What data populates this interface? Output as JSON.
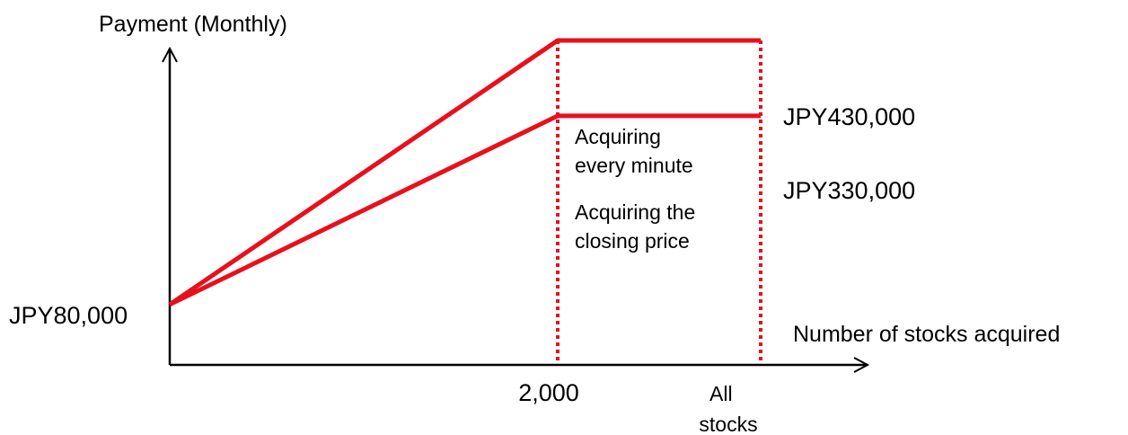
{
  "colors": {
    "axis": "#000000",
    "series": "#e8101c",
    "text": "#000000"
  },
  "chart_data": {
    "type": "line",
    "ylabel": "Payment (Monthly)",
    "xlabel": "Number of stocks acquired",
    "x_ticks": [
      "2,000",
      "All stocks"
    ],
    "series": [
      {
        "name": "Acquiring every minute",
        "annotation": [
          "Acquiring",
          "every minute"
        ],
        "end_label": "JPY430,000",
        "points": [
          [
            "0",
            80000
          ],
          [
            "2,000",
            430000
          ],
          [
            "All stocks",
            430000
          ]
        ]
      },
      {
        "name": "Acquiring the closing price",
        "annotation": [
          "Acquiring the",
          "closing price"
        ],
        "end_label": "JPY330,000",
        "points": [
          [
            "0",
            80000
          ],
          [
            "2,000",
            330000
          ],
          [
            "All stocks",
            330000
          ]
        ]
      }
    ],
    "start_label": "JPY80,000",
    "reference_lines": [
      "2,000",
      "All stocks"
    ],
    "ylim": [
      0,
      480000
    ],
    "grid": false,
    "legend": "none"
  }
}
